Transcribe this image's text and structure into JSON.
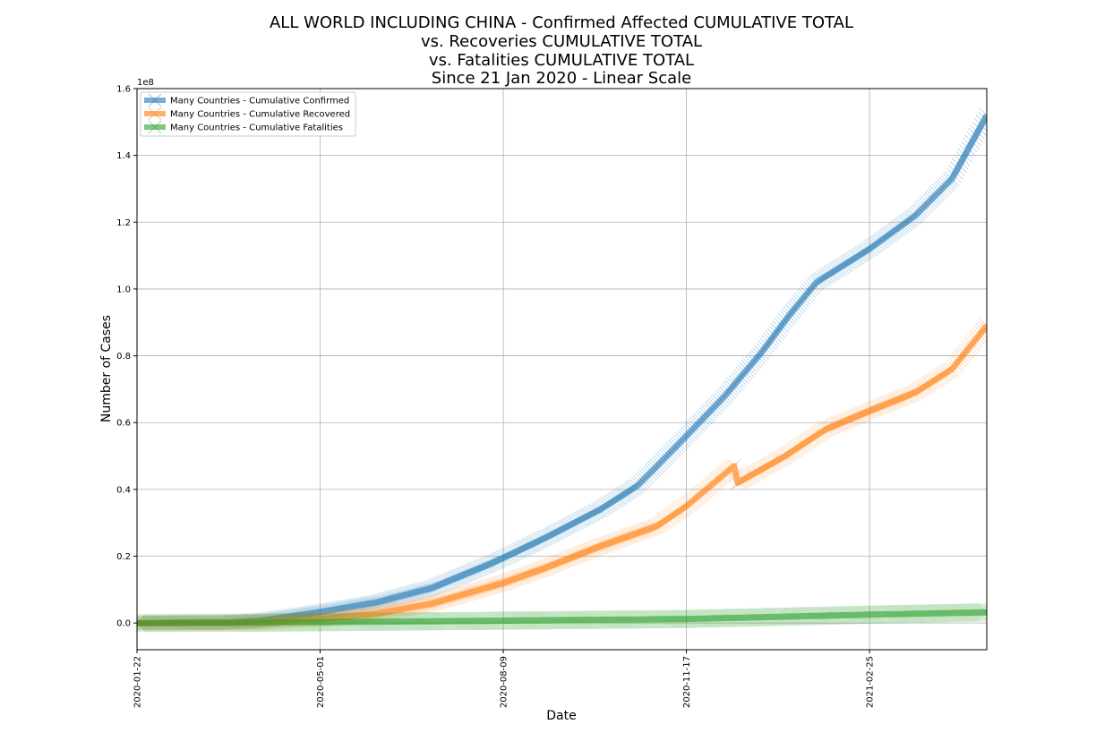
{
  "chart_data": {
    "type": "line",
    "title_lines": [
      "ALL WORLD INCLUDING CHINA - Confirmed Affected CUMULATIVE TOTAL",
      "vs. Recoveries CUMULATIVE TOTAL",
      "vs. Fatalities CUMULATIVE TOTAL",
      "Since 21 Jan 2020 - Linear Scale"
    ],
    "xlabel": "Date",
    "ylabel": "Number of Cases",
    "y_offset_label": "1e8",
    "x_ticks": [
      "2020-01-22",
      "2020-05-01",
      "2020-08-09",
      "2020-11-17",
      "2021-02-25"
    ],
    "y_ticks": [
      "0.0",
      "0.2",
      "0.4",
      "0.6",
      "0.8",
      "1.0",
      "1.2",
      "1.4",
      "1.6"
    ],
    "xlim": [
      "2020-01-22",
      "2021-04-30"
    ],
    "ylim": [
      -0.08,
      1.6
    ],
    "y_unit_multiplier": "1e8",
    "grid": true,
    "legend_position": "upper-left",
    "marker": "x",
    "series": [
      {
        "name": "Many Countries - Cumulative Confirmed",
        "color": "#1f77b4",
        "points": [
          [
            "2020-01-22",
            0.0
          ],
          [
            "2020-02-21",
            0.0008
          ],
          [
            "2020-03-12",
            0.0013
          ],
          [
            "2020-04-01",
            0.009
          ],
          [
            "2020-05-01",
            0.033
          ],
          [
            "2020-06-01",
            0.062
          ],
          [
            "2020-07-01",
            0.105
          ],
          [
            "2020-08-01",
            0.175
          ],
          [
            "2020-08-09",
            0.195
          ],
          [
            "2020-09-01",
            0.255
          ],
          [
            "2020-10-01",
            0.34
          ],
          [
            "2020-10-21",
            0.41
          ],
          [
            "2020-11-01",
            0.47
          ],
          [
            "2020-11-17",
            0.56
          ],
          [
            "2020-12-08",
            0.68
          ],
          [
            "2020-12-28",
            0.81
          ],
          [
            "2021-01-12",
            0.92
          ],
          [
            "2021-01-27",
            1.02
          ],
          [
            "2021-02-25",
            1.12
          ],
          [
            "2021-03-22",
            1.22
          ],
          [
            "2021-04-11",
            1.33
          ],
          [
            "2021-04-30",
            1.52
          ]
        ]
      },
      {
        "name": "Many Countries - Cumulative Recovered",
        "color": "#ff7f0e",
        "points": [
          [
            "2020-01-22",
            0.0
          ],
          [
            "2020-03-12",
            0.0007
          ],
          [
            "2020-04-01",
            0.003
          ],
          [
            "2020-05-01",
            0.012
          ],
          [
            "2020-06-01",
            0.028
          ],
          [
            "2020-07-01",
            0.058
          ],
          [
            "2020-08-09",
            0.12
          ],
          [
            "2020-09-01",
            0.165
          ],
          [
            "2020-10-01",
            0.23
          ],
          [
            "2020-11-01",
            0.29
          ],
          [
            "2020-11-17",
            0.35
          ],
          [
            "2020-12-13",
            0.47
          ],
          [
            "2020-12-15",
            0.42
          ],
          [
            "2021-01-10",
            0.5
          ],
          [
            "2021-02-01",
            0.58
          ],
          [
            "2021-02-25",
            0.635
          ],
          [
            "2021-03-22",
            0.69
          ],
          [
            "2021-04-11",
            0.76
          ],
          [
            "2021-04-30",
            0.89
          ]
        ]
      },
      {
        "name": "Many Countries - Cumulative Fatalities",
        "color": "#2ca02c",
        "points": [
          [
            "2020-01-22",
            0.0
          ],
          [
            "2020-03-12",
            0.0005
          ],
          [
            "2020-05-01",
            0.0024
          ],
          [
            "2020-08-09",
            0.007
          ],
          [
            "2020-11-17",
            0.012
          ],
          [
            "2021-02-25",
            0.025
          ],
          [
            "2021-04-30",
            0.032
          ]
        ]
      }
    ]
  }
}
